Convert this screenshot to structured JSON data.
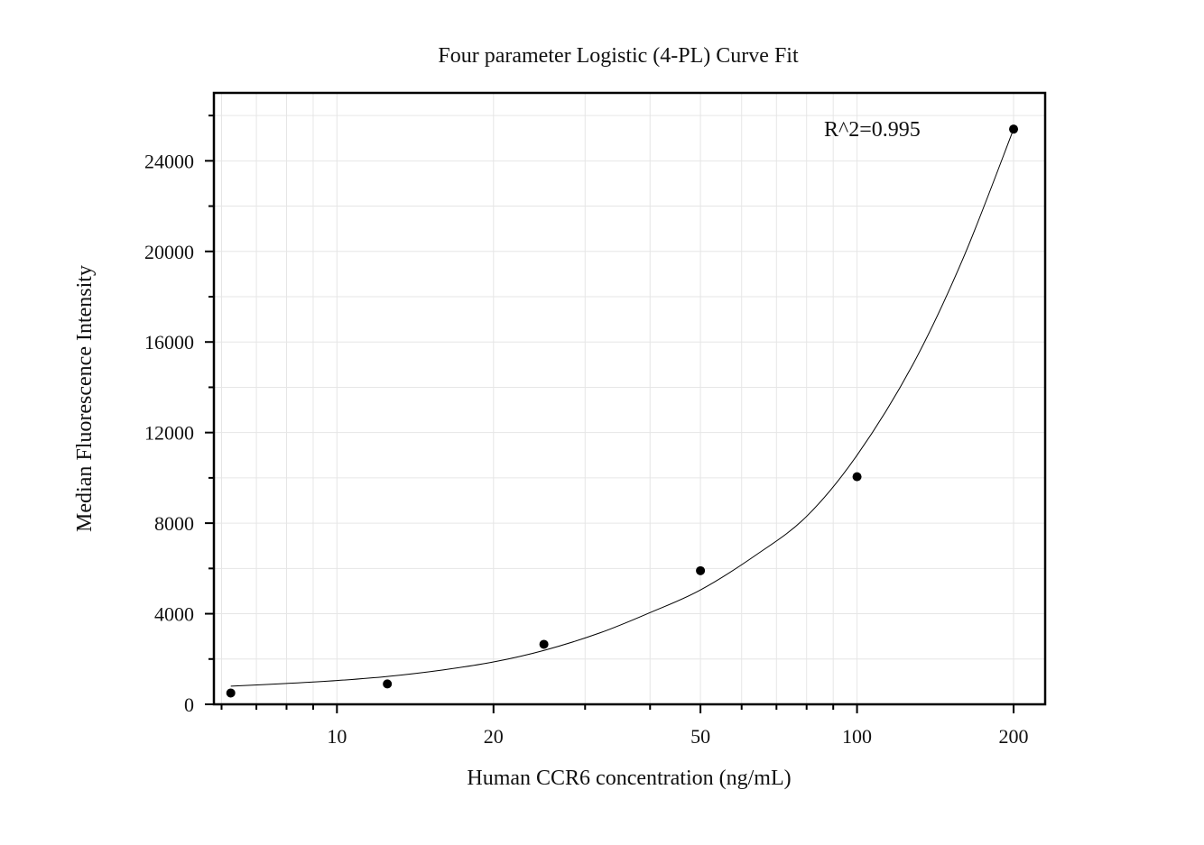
{
  "chart_data": {
    "type": "scatter",
    "title": "Four parameter Logistic (4-PL) Curve Fit",
    "xlabel": "Human CCR6 concentration (ng/mL)",
    "ylabel": "Median Fluorescence Intensity",
    "x_scale": "log",
    "xlim": [
      5.8,
      230
    ],
    "ylim": [
      0,
      27000
    ],
    "x_ticks": [
      10,
      20,
      50,
      100,
      200
    ],
    "x_tick_labels": [
      "10",
      "20",
      "50",
      "100",
      "200"
    ],
    "y_ticks": [
      0,
      4000,
      8000,
      12000,
      16000,
      20000,
      24000
    ],
    "y_tick_labels": [
      "0",
      "4000",
      "8000",
      "12000",
      "16000",
      "20000",
      "24000"
    ],
    "grid": true,
    "annotation": "R^2=0.995",
    "points": {
      "x": [
        6.25,
        12.5,
        25,
        50,
        100,
        200
      ],
      "y": [
        500,
        900,
        2650,
        5900,
        10050,
        25400
      ]
    },
    "fit_curve": {
      "model": "4-PL",
      "x": [
        6.25,
        8,
        10,
        12.5,
        16,
        20,
        25,
        32,
        40,
        50,
        64,
        80,
        100,
        128,
        160,
        200
      ],
      "y": [
        800,
        920,
        1050,
        1230,
        1520,
        1870,
        2380,
        3150,
        4050,
        5050,
        6600,
        8300,
        11000,
        15000,
        19700,
        25400
      ]
    }
  }
}
